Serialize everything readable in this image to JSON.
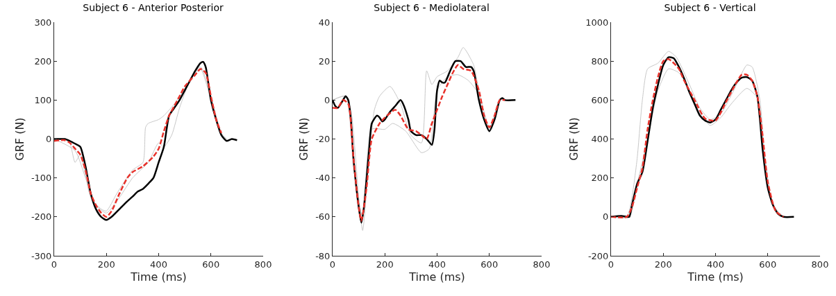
{
  "chart_data": [
    {
      "type": "line",
      "title": "Subject 6 - Anterior Posterior",
      "xlabel": "Time (ms)",
      "ylabel": "GRF (N)",
      "xlim": [
        0,
        800
      ],
      "xticks": [
        0,
        200,
        400,
        600,
        800
      ],
      "ylim": [
        -300,
        300
      ],
      "yticks": [
        -300,
        -200,
        -100,
        0,
        100,
        200,
        300
      ],
      "grid": false,
      "marker": "none",
      "series": [
        {
          "color": "#c8c8c8",
          "line_style": "solid",
          "x": [
            0,
            40,
            60,
            80,
            100,
            140,
            180,
            200,
            240,
            300,
            340,
            350,
            360,
            400,
            420,
            460,
            500,
            560,
            600,
            640,
            660
          ],
          "values": [
            0,
            0,
            -10,
            -60,
            -40,
            -150,
            -180,
            -185,
            -140,
            -80,
            -60,
            30,
            40,
            50,
            60,
            90,
            130,
            185,
            110,
            15,
            0
          ]
        },
        {
          "color": "#c8c8c8",
          "line_style": "solid",
          "x": [
            0,
            80,
            120,
            160,
            200,
            250,
            300,
            360,
            400,
            420,
            450,
            480,
            520,
            560,
            600,
            640,
            660
          ],
          "values": [
            0,
            -30,
            -100,
            -170,
            -190,
            -150,
            -100,
            -60,
            -10,
            -20,
            10,
            80,
            150,
            180,
            100,
            10,
            0
          ]
        },
        {
          "color": "#000000",
          "line_style": "solid",
          "x": [
            0,
            20,
            40,
            60,
            80,
            100,
            120,
            140,
            160,
            180,
            200,
            220,
            250,
            280,
            300,
            320,
            340,
            360,
            380,
            400,
            420,
            440,
            460,
            480,
            500,
            520,
            540,
            560,
            570,
            580,
            600,
            620,
            640,
            660,
            680,
            700
          ],
          "values": [
            0,
            0,
            0,
            -5,
            -12,
            -20,
            -70,
            -140,
            -180,
            -200,
            -208,
            -200,
            -180,
            -160,
            -148,
            -135,
            -128,
            -115,
            -100,
            -60,
            -20,
            60,
            80,
            100,
            125,
            150,
            175,
            195,
            198,
            185,
            100,
            50,
            10,
            -5,
            0,
            -3
          ]
        },
        {
          "color": "#e8312a",
          "line_style": "dashed",
          "x": [
            0,
            40,
            60,
            80,
            100,
            120,
            140,
            160,
            180,
            200,
            220,
            250,
            280,
            300,
            340,
            380,
            400,
            420,
            440,
            460,
            480,
            500,
            540,
            560,
            580,
            600,
            620,
            640
          ],
          "values": [
            -5,
            -3,
            -10,
            -25,
            -40,
            -80,
            -140,
            -170,
            -190,
            -200,
            -185,
            -140,
            -100,
            -85,
            -70,
            -45,
            -25,
            20,
            60,
            85,
            110,
            135,
            165,
            180,
            170,
            110,
            50,
            15
          ]
        }
      ]
    },
    {
      "type": "line",
      "title": "Subject 6 - Mediolateral",
      "xlabel": "Time (ms)",
      "ylabel": "GRF (N)",
      "xlim": [
        0,
        800
      ],
      "xticks": [
        0,
        200,
        400,
        600,
        800
      ],
      "ylim": [
        -80,
        40
      ],
      "yticks": [
        -80,
        -60,
        -40,
        -20,
        0,
        20,
        40
      ],
      "grid": false,
      "marker": "none",
      "series": [
        {
          "color": "#c8c8c8",
          "line_style": "solid",
          "x": [
            0,
            50,
            70,
            100,
            115,
            140,
            160,
            180,
            220,
            260,
            300,
            340,
            360,
            380,
            400,
            440,
            480,
            500,
            540,
            560,
            600,
            640,
            660
          ],
          "values": [
            0,
            2,
            -5,
            -50,
            -67,
            -30,
            -5,
            2,
            7,
            -2,
            -18,
            -22,
            15,
            8,
            12,
            15,
            22,
            27,
            18,
            5,
            -15,
            0,
            0
          ]
        },
        {
          "color": "#c8c8c8",
          "line_style": "solid",
          "x": [
            0,
            50,
            80,
            115,
            150,
            200,
            230,
            280,
            340,
            370,
            400,
            440,
            480,
            520,
            560,
            600,
            640
          ],
          "values": [
            0,
            2,
            -35,
            -60,
            -15,
            -15,
            -12,
            -16,
            -27,
            -25,
            5,
            12,
            13,
            10,
            3,
            -14,
            0
          ]
        },
        {
          "color": "#000000",
          "line_style": "solid",
          "x": [
            0,
            10,
            20,
            40,
            50,
            60,
            70,
            80,
            100,
            110,
            120,
            140,
            150,
            170,
            180,
            190,
            200,
            220,
            240,
            260,
            270,
            290,
            300,
            320,
            340,
            360,
            380,
            390,
            400,
            410,
            420,
            430,
            450,
            470,
            490,
            510,
            530,
            540,
            560,
            580,
            600,
            620,
            640,
            650,
            660,
            700
          ],
          "values": [
            0,
            -3,
            -4,
            0,
            2,
            0,
            -10,
            -30,
            -55,
            -63,
            -55,
            -25,
            -12,
            -8,
            -9,
            -11,
            -10,
            -6,
            -3,
            0,
            -2,
            -10,
            -16,
            -18,
            -18,
            -20,
            -23,
            -15,
            5,
            10,
            9,
            9,
            15,
            20,
            20,
            17,
            17,
            15,
            0,
            -10,
            -16,
            -10,
            0,
            1,
            0,
            0
          ]
        },
        {
          "color": "#e8312a",
          "line_style": "dashed",
          "x": [
            0,
            20,
            40,
            60,
            80,
            100,
            110,
            130,
            150,
            180,
            200,
            240,
            260,
            290,
            320,
            340,
            360,
            380,
            400,
            420,
            440,
            460,
            480,
            500,
            530,
            560,
            580,
            600,
            620,
            640,
            660
          ],
          "values": [
            -4,
            -4,
            0,
            -2,
            -30,
            -55,
            -62,
            -45,
            -20,
            -12,
            -9,
            -5,
            -8,
            -15,
            -16,
            -18,
            -20,
            -12,
            -5,
            2,
            8,
            14,
            18,
            16,
            15,
            5,
            -8,
            -14,
            -8,
            0,
            0
          ]
        }
      ]
    },
    {
      "type": "line",
      "title": "Subject 6 - Vertical",
      "xlabel": "Time (ms)",
      "ylabel": "GRF (N)",
      "xlim": [
        0,
        800
      ],
      "xticks": [
        0,
        200,
        400,
        600,
        800
      ],
      "ylim": [
        -200,
        1000
      ],
      "yticks": [
        -200,
        0,
        200,
        400,
        600,
        800,
        1000
      ],
      "grid": false,
      "marker": "none",
      "series": [
        {
          "color": "#c8c8c8",
          "line_style": "solid",
          "x": [
            0,
            60,
            80,
            100,
            120,
            140,
            180,
            220,
            250,
            300,
            340,
            380,
            420,
            470,
            520,
            540,
            570,
            600,
            640,
            660
          ],
          "values": [
            0,
            0,
            100,
            300,
            600,
            760,
            790,
            850,
            820,
            680,
            560,
            500,
            530,
            650,
            780,
            770,
            600,
            150,
            10,
            0
          ]
        },
        {
          "color": "#c8c8c8",
          "line_style": "solid",
          "x": [
            0,
            70,
            100,
            140,
            180,
            220,
            260,
            300,
            340,
            380,
            420,
            460,
            520,
            560,
            590,
            620,
            660
          ],
          "values": [
            0,
            0,
            170,
            400,
            650,
            760,
            740,
            650,
            530,
            470,
            510,
            580,
            660,
            610,
            300,
            60,
            0
          ]
        },
        {
          "color": "#000000",
          "line_style": "solid",
          "x": [
            0,
            40,
            60,
            70,
            80,
            100,
            120,
            140,
            160,
            180,
            200,
            220,
            240,
            260,
            280,
            300,
            320,
            340,
            360,
            380,
            400,
            420,
            440,
            460,
            480,
            500,
            520,
            540,
            560,
            570,
            580,
            600,
            620,
            640,
            660,
            700
          ],
          "values": [
            0,
            5,
            0,
            0,
            60,
            170,
            230,
            390,
            560,
            680,
            780,
            820,
            815,
            770,
            710,
            640,
            580,
            520,
            495,
            485,
            500,
            550,
            600,
            650,
            690,
            715,
            718,
            700,
            620,
            500,
            350,
            150,
            60,
            15,
            0,
            0
          ]
        },
        {
          "color": "#e8312a",
          "line_style": "dashed",
          "x": [
            0,
            60,
            80,
            100,
            120,
            140,
            160,
            180,
            200,
            220,
            240,
            260,
            280,
            320,
            360,
            400,
            440,
            480,
            500,
            520,
            540,
            560,
            580,
            600,
            630,
            660
          ],
          "values": [
            0,
            0,
            50,
            150,
            250,
            450,
            600,
            720,
            800,
            810,
            790,
            760,
            700,
            600,
            505,
            495,
            590,
            690,
            730,
            730,
            700,
            620,
            420,
            180,
            30,
            0
          ]
        }
      ]
    }
  ]
}
